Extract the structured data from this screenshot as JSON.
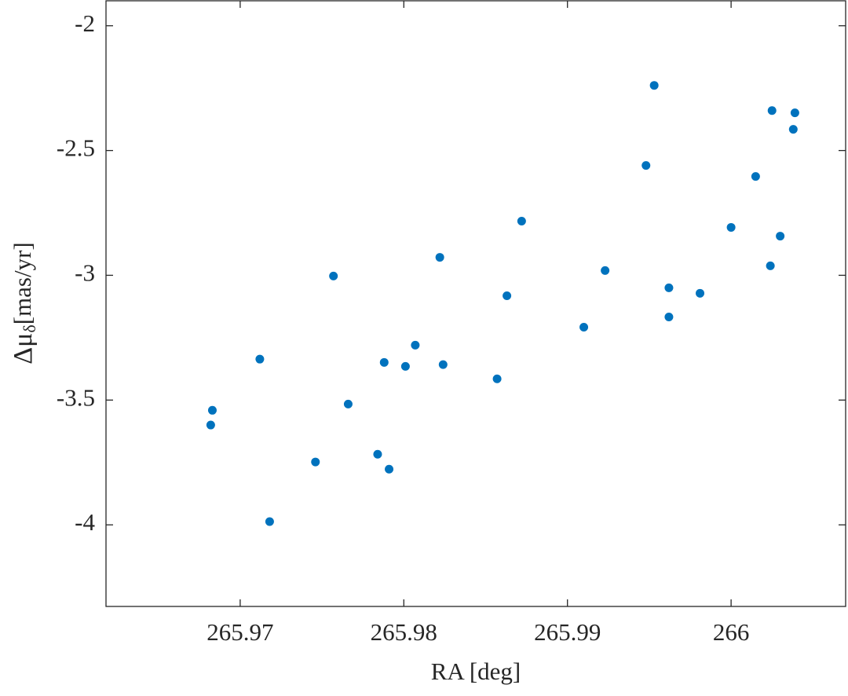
{
  "chart_data": {
    "type": "scatter",
    "xlabel": "RA [deg]",
    "ylabel": {
      "symbol": "Δμ",
      "subscript": "δ",
      "unit": "[mas/yr]"
    },
    "color": "#0072bd",
    "x": [
      265.9682,
      265.9683,
      265.9712,
      265.9718,
      265.9746,
      265.9757,
      265.9766,
      265.9784,
      265.9788,
      265.9791,
      265.9801,
      265.9807,
      265.9822,
      265.9824,
      265.9857,
      265.9863,
      265.9872,
      265.991,
      265.9923,
      265.9948,
      265.9953,
      265.9962,
      265.9962,
      265.9981,
      266.0,
      266.0015,
      266.0024,
      266.0025,
      266.003,
      266.0038,
      266.0039
    ],
    "values": [
      -3.6,
      -3.541,
      -3.336,
      -3.987,
      -3.748,
      -3.003,
      -3.516,
      -3.717,
      -3.349,
      -3.777,
      -3.365,
      -3.28,
      -2.928,
      -3.358,
      -3.415,
      -3.082,
      -2.783,
      -3.208,
      -2.981,
      -2.56,
      -2.239,
      -3.05,
      -3.167,
      -3.072,
      -2.808,
      -2.604,
      -2.962,
      -2.34,
      -2.843,
      -2.415,
      -2.349
    ],
    "xlim": [
      265.9618,
      266.007
    ],
    "ylim": [
      -4.327,
      -1.9
    ],
    "xticks": [
      265.97,
      265.98,
      265.99,
      266
    ],
    "yticks": [
      -4,
      -3.5,
      -3,
      -2.5,
      -2
    ]
  }
}
